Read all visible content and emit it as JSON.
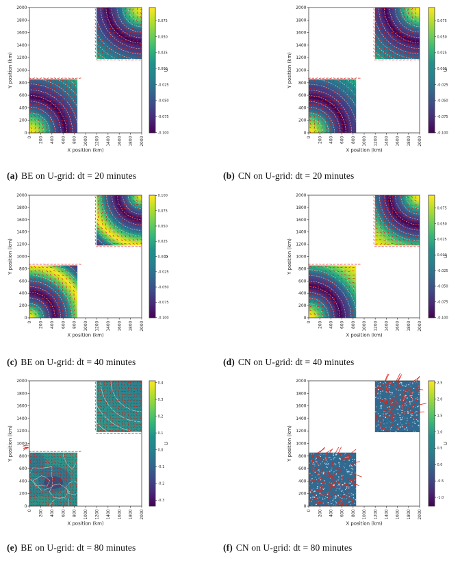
{
  "page": {
    "background_color": "#ffffff",
    "text_color": "#141414"
  },
  "chart_data": {
    "type": "heatmap",
    "title": "",
    "description": "Six-panel figure of filled contour (viridis) plots of velocity component U with red quiver arrows on two offset square subdomains, comparing BE and CN time-stepping schemes on a U-grid for time steps of 20, 40 and 80 minutes.",
    "colormap": "viridis",
    "x_axis": {
      "label": "X position (km)",
      "range": [
        0,
        2000
      ],
      "ticks": [
        "0",
        "200",
        "400",
        "600",
        "800",
        "1000",
        "1200",
        "1400",
        "1600",
        "1800",
        "2000"
      ]
    },
    "y_axis": {
      "label": "Y position (km)",
      "range": [
        0,
        2000
      ],
      "ticks": [
        "0",
        "200",
        "400",
        "600",
        "800",
        "1000",
        "1200",
        "1400",
        "1600",
        "1800",
        "2000"
      ]
    },
    "subdomains": [
      {
        "x_km": [
          0,
          855
        ],
        "y_km": [
          0,
          855
        ],
        "wave_center_km": [
          0,
          0
        ]
      },
      {
        "x_km": [
          1195,
          2000
        ],
        "y_km": [
          1180,
          2000
        ],
        "wave_center_km": [
          2000,
          2000
        ]
      }
    ],
    "viridis_hex": [
      "#440154",
      "#482878",
      "#3e4a89",
      "#31688e",
      "#26828e",
      "#21918c",
      "#35b779",
      "#6ece58",
      "#b5de2b",
      "#fde725"
    ],
    "quiver_color": "#dd1b15",
    "contour_line_color": "#e3d8e0",
    "panels": [
      {
        "id": "a",
        "caption_label": "(a)",
        "caption_text": "BE on U-grid: dt = 20 minutes",
        "scheme": "BE",
        "dt_minutes": 20,
        "style": "rings_dt20",
        "colorbar": {
          "label": "U",
          "ticks": [
            "0.075",
            "0.050",
            "0.025",
            "0.000",
            "-0.025",
            "-0.050",
            "-0.075",
            "-0.100"
          ],
          "vmax": 0.0955,
          "vmin": -0.1005
        }
      },
      {
        "id": "b",
        "caption_label": "(b)",
        "caption_text": "CN on U-grid: dt = 20 minutes",
        "scheme": "CN",
        "dt_minutes": 20,
        "style": "rings_dt20",
        "colorbar": {
          "label": "U",
          "ticks": [
            "0.075",
            "0.050",
            "0.025",
            "0.000",
            "-0.025",
            "-0.050",
            "-0.075",
            "-0.100"
          ],
          "vmax": 0.0955,
          "vmin": -0.1005
        }
      },
      {
        "id": "c",
        "caption_label": "(c)",
        "caption_text": "BE on U-grid: dt = 40 minutes",
        "scheme": "BE",
        "dt_minutes": 40,
        "style": "rings_dt40_be",
        "colorbar": {
          "label": "U",
          "ticks": [
            "0.100",
            "0.075",
            "0.050",
            "0.025",
            "0.000",
            "-0.025",
            "-0.050",
            "-0.075",
            "-0.100"
          ],
          "vmax": 0.1005,
          "vmin": -0.1005
        }
      },
      {
        "id": "d",
        "caption_label": "(d)",
        "caption_text": "CN on U-grid: dt = 40 minutes",
        "scheme": "CN",
        "dt_minutes": 40,
        "style": "rings_dt40_cn",
        "colorbar": {
          "label": "U",
          "ticks": [
            "0.075",
            "0.050",
            "0.025",
            "0.000",
            "-0.025",
            "-0.050",
            "-0.075",
            "-0.100"
          ],
          "vmax": 0.0955,
          "vmin": -0.1005
        }
      },
      {
        "id": "e",
        "caption_label": "(e)",
        "caption_text": "BE on U-grid: dt = 80 minutes",
        "scheme": "BE",
        "dt_minutes": 80,
        "style": "damped",
        "colorbar": {
          "label": "U",
          "ticks": [
            "0.4",
            "0.3",
            "0.2",
            "0.1",
            "0.0",
            "-0.1",
            "-0.2",
            "-0.3"
          ],
          "vmax": 0.41,
          "vmin": -0.335
        }
      },
      {
        "id": "f",
        "caption_label": "(f)",
        "caption_text": "CN on U-grid: dt = 80 minutes",
        "scheme": "CN",
        "dt_minutes": 80,
        "style": "noisy",
        "colorbar": {
          "label": "U",
          "ticks": [
            "2.5",
            "2.0",
            "1.5",
            "1.0",
            "0.5",
            "0.0",
            "-0.5",
            "-1.0"
          ],
          "vmax": 2.56,
          "vmin": -1.27
        }
      }
    ]
  }
}
